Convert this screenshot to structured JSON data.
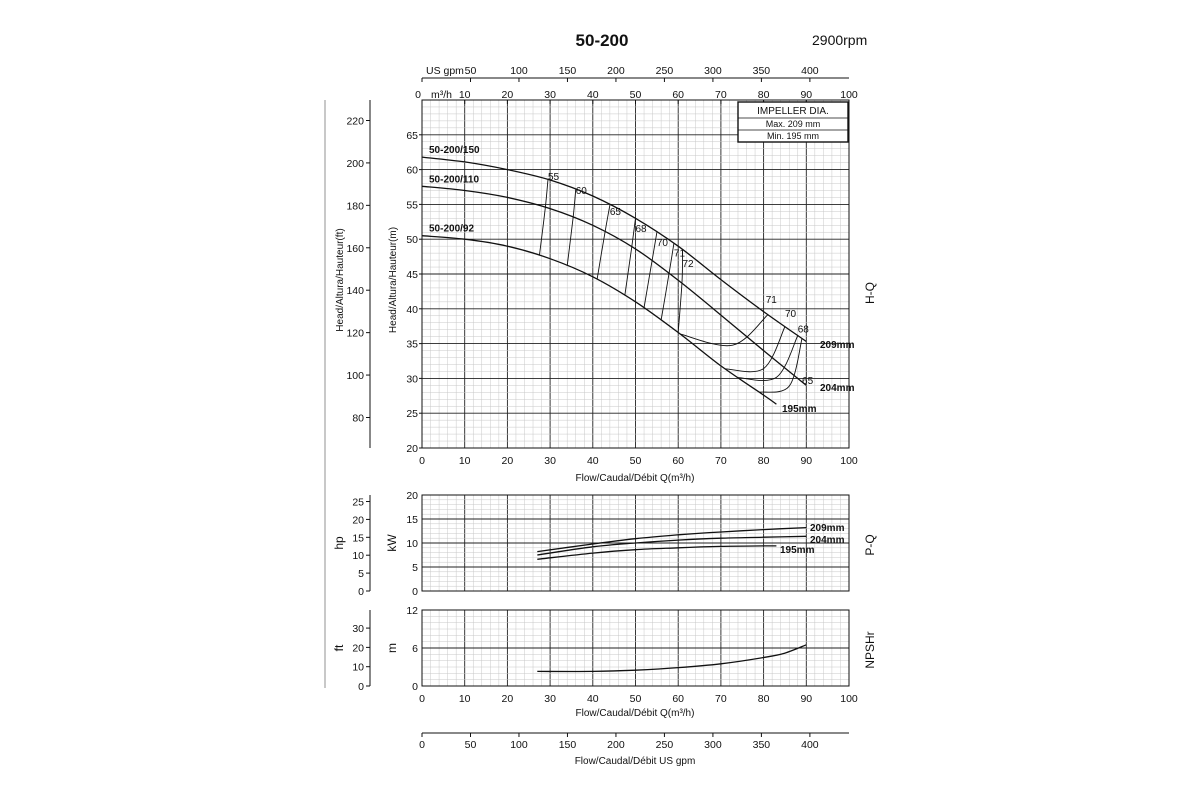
{
  "title": "50-200",
  "speed": "2900rpm",
  "impeller_box": {
    "heading": "IMPELLER DIA.",
    "max": "Max.  209  mm",
    "min": "Min.  195  mm"
  },
  "labels": {
    "us_gpm_top": "US gpm",
    "m3h_top": "m³/h",
    "head_m": "Head/Altura/Hauteur(m)",
    "head_ft": "Head/Altura/Hauteur(ft)",
    "flow_mid": "Flow/Caudal/Débit Q(m³/h)",
    "flow_bottom": "Flow/Caudal/Débit Q(m³/h)",
    "flow_gpm": "Flow/Caudal/Débit  US gpm",
    "hq": "H-Q",
    "pq": "P-Q",
    "npshr": "NPSHr",
    "hp": "hp",
    "kw": "kW",
    "ft": "ft",
    "m": "m"
  },
  "chart_data": [
    {
      "type": "line",
      "name": "H-Q",
      "xlabel": "Flow/Caudal/Débit Q(m³/h)",
      "ylabel": "Head/Altura/Hauteur(m)",
      "xlim": [
        0,
        100
      ],
      "ylim": [
        20,
        70
      ],
      "x_ticks": [
        0,
        10,
        20,
        30,
        40,
        50,
        60,
        70,
        80,
        90,
        100
      ],
      "y_ticks": [
        20,
        25,
        30,
        35,
        40,
        45,
        50,
        55,
        60,
        65
      ],
      "y2_label": "Head/Altura/Hauteur(ft)",
      "y2_ticks": [
        80,
        100,
        120,
        140,
        160,
        180,
        200,
        220
      ],
      "top_m3h_ticks": [
        0,
        10,
        20,
        30,
        40,
        50,
        60,
        70,
        80,
        90,
        100
      ],
      "top_gpm_ticks": [
        0,
        50,
        100,
        150,
        200,
        250,
        300,
        350,
        400
      ],
      "series": [
        {
          "name": "209mm",
          "tag": "50-200/150",
          "x": [
            0,
            10,
            20,
            30,
            40,
            50,
            60,
            70,
            80,
            90
          ],
          "y": [
            61.8,
            61.1,
            60.0,
            58.5,
            56.2,
            53.0,
            49.0,
            44.2,
            39.6,
            35.3
          ]
        },
        {
          "name": "204mm",
          "tag": "50-200/110",
          "x": [
            0,
            10,
            20,
            30,
            40,
            50,
            60,
            70,
            80,
            90
          ],
          "y": [
            57.6,
            57.0,
            56.0,
            54.4,
            52.0,
            48.6,
            44.1,
            39.1,
            34.0,
            29.0
          ]
        },
        {
          "name": "195mm",
          "tag": "50-200/92",
          "x": [
            0,
            10,
            20,
            30,
            40,
            50,
            60,
            70,
            80,
            83
          ],
          "y": [
            50.5,
            50.0,
            49.0,
            47.2,
            44.6,
            41.0,
            36.6,
            31.8,
            27.6,
            26.3
          ]
        }
      ],
      "efficiency_labels": [
        "55",
        "60",
        "65",
        "68",
        "70",
        "71",
        "72",
        "71",
        "70",
        "68",
        "65"
      ]
    },
    {
      "type": "line",
      "name": "P-Q",
      "ylabel": "kW",
      "y2_label": "hp",
      "xlim": [
        0,
        100
      ],
      "ylim": [
        0,
        20
      ],
      "y_ticks": [
        0,
        5,
        10,
        15,
        20
      ],
      "y2_ticks": [
        0,
        5,
        10,
        15,
        20,
        25
      ],
      "series": [
        {
          "name": "209mm",
          "x": [
            27,
            40,
            50,
            60,
            70,
            80,
            90
          ],
          "y": [
            8.2,
            9.8,
            10.9,
            11.7,
            12.3,
            12.8,
            13.2
          ]
        },
        {
          "name": "204mm",
          "x": [
            27,
            40,
            50,
            60,
            70,
            80,
            90
          ],
          "y": [
            7.5,
            9.2,
            10.0,
            10.6,
            11.0,
            11.2,
            11.4
          ]
        },
        {
          "name": "195mm",
          "x": [
            27,
            40,
            50,
            60,
            70,
            80,
            83
          ],
          "y": [
            6.6,
            7.9,
            8.6,
            9.0,
            9.3,
            9.4,
            9.4
          ]
        }
      ]
    },
    {
      "type": "line",
      "name": "NPSHr",
      "xlabel": "Flow/Caudal/Débit Q(m³/h)",
      "ylabel": "m",
      "y2_label": "ft",
      "xlim": [
        0,
        100
      ],
      "ylim": [
        0,
        12
      ],
      "y_ticks": [
        0,
        6,
        12
      ],
      "y2_ticks": [
        0,
        10,
        20,
        30
      ],
      "series": [
        {
          "name": "NPSHr",
          "x": [
            27,
            40,
            50,
            60,
            70,
            80,
            85,
            90
          ],
          "y": [
            2.3,
            2.3,
            2.5,
            2.9,
            3.5,
            4.5,
            5.2,
            6.5
          ]
        }
      ]
    },
    {
      "type": "line",
      "name": "US gpm axis",
      "xlabel": "Flow/Caudal/Débit  US gpm",
      "x_ticks": [
        0,
        50,
        100,
        150,
        200,
        250,
        300,
        350,
        400
      ]
    }
  ]
}
